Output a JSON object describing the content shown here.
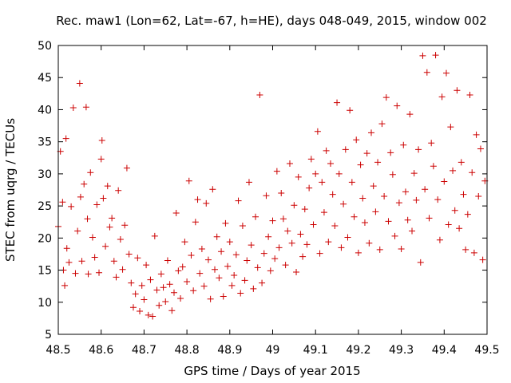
{
  "chart_data": {
    "type": "scatter",
    "title": "Rec. maw1 (Lon=62, Lat=-67, h=HE), days 048-049, 2015, window 002",
    "xlabel": "GPS time / Days of year 2015",
    "ylabel": "STEC from uqrg / TECUs",
    "xlim": [
      48.5,
      49.5
    ],
    "ylim": [
      5,
      50
    ],
    "xticks": [
      48.5,
      48.6,
      48.7,
      48.8,
      48.9,
      49,
      49.1,
      49.2,
      49.3,
      49.4,
      49.5
    ],
    "xtick_labels": [
      "48.5",
      "48.6",
      "48.7",
      "48.8",
      "48.9",
      "49",
      "49.1",
      "49.2",
      "49.3",
      "49.4",
      "49.5"
    ],
    "yticks": [
      5,
      10,
      15,
      20,
      25,
      30,
      35,
      40,
      45,
      50
    ],
    "ytick_labels": [
      "5",
      "10",
      "15",
      "20",
      "25",
      "30",
      "35",
      "40",
      "45",
      "50"
    ],
    "grid": false,
    "marker": "+",
    "color": "#cc0000",
    "series": [
      {
        "values": [
          [
            48.5,
            21.8
          ],
          [
            48.505,
            33.5
          ],
          [
            48.51,
            25.6
          ],
          [
            48.512,
            15.0
          ],
          [
            48.515,
            12.6
          ],
          [
            48.518,
            35.5
          ],
          [
            48.52,
            18.4
          ],
          [
            48.525,
            16.2
          ],
          [
            48.53,
            24.9
          ],
          [
            48.535,
            40.3
          ],
          [
            48.54,
            14.5
          ],
          [
            48.545,
            21.1
          ],
          [
            48.55,
            44.1
          ],
          [
            48.552,
            26.4
          ],
          [
            48.555,
            16.4
          ],
          [
            48.56,
            28.4
          ],
          [
            48.565,
            40.4
          ],
          [
            48.568,
            23.0
          ],
          [
            48.57,
            14.4
          ],
          [
            48.575,
            30.2
          ],
          [
            48.58,
            20.1
          ],
          [
            48.585,
            17.0
          ],
          [
            48.59,
            25.2
          ],
          [
            48.595,
            14.6
          ],
          [
            48.6,
            32.3
          ],
          [
            48.602,
            35.2
          ],
          [
            48.605,
            26.2
          ],
          [
            48.61,
            18.7
          ],
          [
            48.615,
            28.1
          ],
          [
            48.62,
            21.7
          ],
          [
            48.625,
            23.1
          ],
          [
            48.63,
            16.4
          ],
          [
            48.635,
            13.9
          ],
          [
            48.64,
            27.4
          ],
          [
            48.645,
            19.8
          ],
          [
            48.65,
            15.1
          ],
          [
            48.655,
            22.0
          ],
          [
            48.66,
            30.9
          ],
          [
            48.665,
            17.5
          ],
          [
            48.67,
            13.0
          ],
          [
            48.675,
            9.2
          ],
          [
            48.68,
            11.3
          ],
          [
            48.685,
            16.9
          ],
          [
            48.69,
            8.6
          ],
          [
            48.695,
            12.6
          ],
          [
            48.7,
            10.4
          ],
          [
            48.705,
            15.8
          ],
          [
            48.71,
            8.0
          ],
          [
            48.715,
            13.5
          ],
          [
            48.72,
            7.8
          ],
          [
            48.725,
            20.3
          ],
          [
            48.73,
            11.9
          ],
          [
            48.735,
            9.5
          ],
          [
            48.74,
            14.4
          ],
          [
            48.745,
            12.3
          ],
          [
            48.75,
            10.1
          ],
          [
            48.755,
            16.5
          ],
          [
            48.76,
            12.8
          ],
          [
            48.765,
            8.7
          ],
          [
            48.77,
            11.5
          ],
          [
            48.775,
            23.9
          ],
          [
            48.78,
            14.9
          ],
          [
            48.785,
            10.6
          ],
          [
            48.79,
            15.5
          ],
          [
            48.795,
            19.4
          ],
          [
            48.8,
            13.2
          ],
          [
            48.805,
            28.9
          ],
          [
            48.81,
            17.3
          ],
          [
            48.815,
            11.8
          ],
          [
            48.82,
            22.5
          ],
          [
            48.825,
            26.0
          ],
          [
            48.83,
            14.5
          ],
          [
            48.835,
            18.3
          ],
          [
            48.84,
            12.5
          ],
          [
            48.845,
            25.4
          ],
          [
            48.85,
            16.6
          ],
          [
            48.855,
            10.5
          ],
          [
            48.86,
            27.6
          ],
          [
            48.865,
            15.1
          ],
          [
            48.87,
            20.2
          ],
          [
            48.875,
            13.8
          ],
          [
            48.88,
            17.9
          ],
          [
            48.885,
            10.9
          ],
          [
            48.89,
            22.3
          ],
          [
            48.895,
            15.6
          ],
          [
            48.9,
            19.4
          ],
          [
            48.905,
            12.6
          ],
          [
            48.91,
            14.2
          ],
          [
            48.915,
            17.4
          ],
          [
            48.92,
            25.8
          ],
          [
            48.925,
            11.4
          ],
          [
            48.93,
            21.9
          ],
          [
            48.935,
            13.4
          ],
          [
            48.94,
            16.5
          ],
          [
            48.945,
            28.7
          ],
          [
            48.95,
            18.9
          ],
          [
            48.955,
            12.1
          ],
          [
            48.96,
            23.3
          ],
          [
            48.965,
            15.4
          ],
          [
            48.97,
            42.3
          ],
          [
            48.975,
            13.0
          ],
          [
            48.98,
            17.6
          ],
          [
            48.985,
            26.6
          ],
          [
            48.99,
            20.2
          ],
          [
            48.995,
            14.9
          ],
          [
            49.0,
            22.7
          ],
          [
            49.005,
            16.8
          ],
          [
            49.01,
            30.4
          ],
          [
            49.015,
            18.5
          ],
          [
            49.02,
            27.0
          ],
          [
            49.025,
            23.0
          ],
          [
            49.03,
            15.8
          ],
          [
            49.035,
            21.1
          ],
          [
            49.04,
            31.6
          ],
          [
            49.045,
            19.2
          ],
          [
            49.05,
            25.1
          ],
          [
            49.055,
            14.7
          ],
          [
            49.06,
            29.5
          ],
          [
            49.065,
            20.6
          ],
          [
            49.07,
            17.1
          ],
          [
            49.075,
            24.5
          ],
          [
            49.08,
            19.0
          ],
          [
            49.085,
            27.8
          ],
          [
            49.09,
            32.3
          ],
          [
            49.095,
            22.1
          ],
          [
            49.1,
            30.0
          ],
          [
            49.105,
            36.6
          ],
          [
            49.11,
            17.6
          ],
          [
            49.115,
            28.7
          ],
          [
            49.12,
            24.0
          ],
          [
            49.125,
            33.6
          ],
          [
            49.13,
            19.4
          ],
          [
            49.135,
            31.6
          ],
          [
            49.14,
            26.8
          ],
          [
            49.145,
            21.9
          ],
          [
            49.15,
            41.1
          ],
          [
            49.155,
            30.0
          ],
          [
            49.16,
            18.5
          ],
          [
            49.165,
            25.3
          ],
          [
            49.17,
            33.8
          ],
          [
            49.175,
            20.1
          ],
          [
            49.18,
            39.9
          ],
          [
            49.185,
            28.7
          ],
          [
            49.19,
            23.3
          ],
          [
            49.195,
            35.3
          ],
          [
            49.2,
            17.7
          ],
          [
            49.205,
            31.4
          ],
          [
            49.21,
            26.2
          ],
          [
            49.215,
            22.4
          ],
          [
            49.22,
            33.2
          ],
          [
            49.225,
            19.2
          ],
          [
            49.23,
            36.4
          ],
          [
            49.235,
            28.1
          ],
          [
            49.24,
            24.1
          ],
          [
            49.245,
            31.8
          ],
          [
            49.25,
            18.2
          ],
          [
            49.255,
            37.8
          ],
          [
            49.26,
            26.5
          ],
          [
            49.265,
            41.9
          ],
          [
            49.27,
            22.6
          ],
          [
            49.275,
            33.3
          ],
          [
            49.28,
            29.9
          ],
          [
            49.285,
            20.3
          ],
          [
            49.29,
            40.6
          ],
          [
            49.295,
            25.5
          ],
          [
            49.3,
            18.3
          ],
          [
            49.305,
            34.5
          ],
          [
            49.31,
            27.2
          ],
          [
            49.315,
            22.8
          ],
          [
            49.32,
            39.3
          ],
          [
            49.325,
            21.1
          ],
          [
            49.33,
            30.1
          ],
          [
            49.335,
            25.9
          ],
          [
            49.34,
            33.8
          ],
          [
            49.345,
            16.2
          ],
          [
            49.35,
            48.4
          ],
          [
            49.355,
            27.6
          ],
          [
            49.36,
            45.8
          ],
          [
            49.365,
            23.1
          ],
          [
            49.37,
            34.8
          ],
          [
            49.375,
            31.2
          ],
          [
            49.38,
            48.5
          ],
          [
            49.385,
            26.0
          ],
          [
            49.39,
            19.7
          ],
          [
            49.395,
            42.0
          ],
          [
            49.4,
            28.8
          ],
          [
            49.405,
            45.7
          ],
          [
            49.41,
            22.1
          ],
          [
            49.415,
            37.3
          ],
          [
            49.42,
            30.5
          ],
          [
            49.425,
            24.3
          ],
          [
            49.43,
            43.0
          ],
          [
            49.435,
            21.5
          ],
          [
            49.44,
            31.8
          ],
          [
            49.445,
            26.8
          ],
          [
            49.45,
            18.2
          ],
          [
            49.455,
            23.7
          ],
          [
            49.46,
            42.3
          ],
          [
            49.465,
            30.2
          ],
          [
            49.47,
            17.7
          ],
          [
            49.475,
            36.1
          ],
          [
            49.48,
            26.5
          ],
          [
            49.485,
            33.9
          ],
          [
            49.49,
            16.6
          ],
          [
            49.495,
            28.9
          ]
        ]
      }
    ]
  }
}
